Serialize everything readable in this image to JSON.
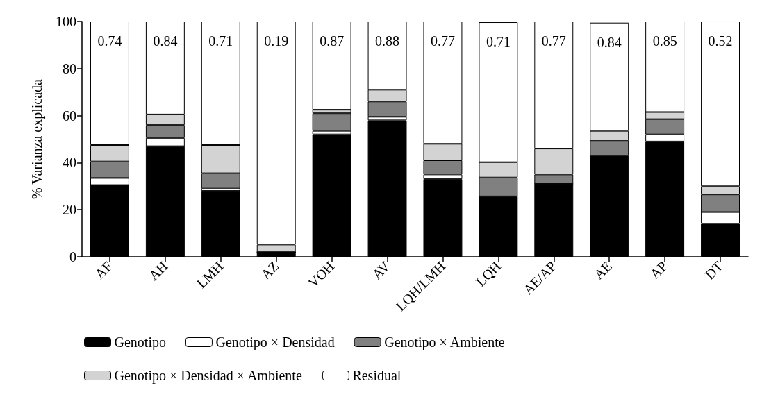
{
  "chart_data": {
    "type": "bar",
    "stacked": true,
    "ylabel": "% Varianza explicada",
    "categories": [
      "AF",
      "AH",
      "LMH",
      "AZ",
      "VOH",
      "AV",
      "LQH/LMH",
      "LQH",
      "AE/AP",
      "AE",
      "AP",
      "DT"
    ],
    "ylim": [
      0,
      100
    ],
    "yticks": [
      0,
      20,
      40,
      60,
      80,
      100
    ],
    "grid": false,
    "legend": "bottom",
    "series": [
      {
        "name": "Genotipo",
        "color": "#000000",
        "values": [
          30.5,
          47,
          28,
          2,
          52,
          58,
          33,
          25.7,
          31,
          43,
          49,
          14
        ]
      },
      {
        "name": "Genotipo × Densidad",
        "color": "#ffffff",
        "values": [
          3,
          3.5,
          1,
          0,
          1.5,
          1.5,
          2,
          null,
          0,
          null,
          3,
          5
        ]
      },
      {
        "name": "Genotipo × Ambiente",
        "color": "#808080",
        "values": [
          7,
          5.5,
          6.5,
          0,
          7.5,
          6.5,
          6,
          8,
          4,
          6.5,
          6.5,
          7.5
        ]
      },
      {
        "name": "Genotipo × Densidad × Ambiente",
        "color": "#d3d3d3",
        "values": [
          7,
          4.5,
          12,
          3.2,
          1.5,
          5,
          7,
          6.5,
          11,
          4,
          3,
          3.5
        ]
      },
      {
        "name": "Residual",
        "color": "#ffffff",
        "values": [
          52.5,
          39.5,
          52.5,
          94.8,
          37.5,
          29,
          52,
          59.5,
          54,
          46,
          38.5,
          70
        ]
      }
    ],
    "annotations": [
      "0.74",
      "0.84",
      "0.71",
      "0.19",
      "0.87",
      "0.88",
      "0.77",
      "0.71",
      "0.77",
      "0.84",
      "0.85",
      "0.52"
    ]
  }
}
